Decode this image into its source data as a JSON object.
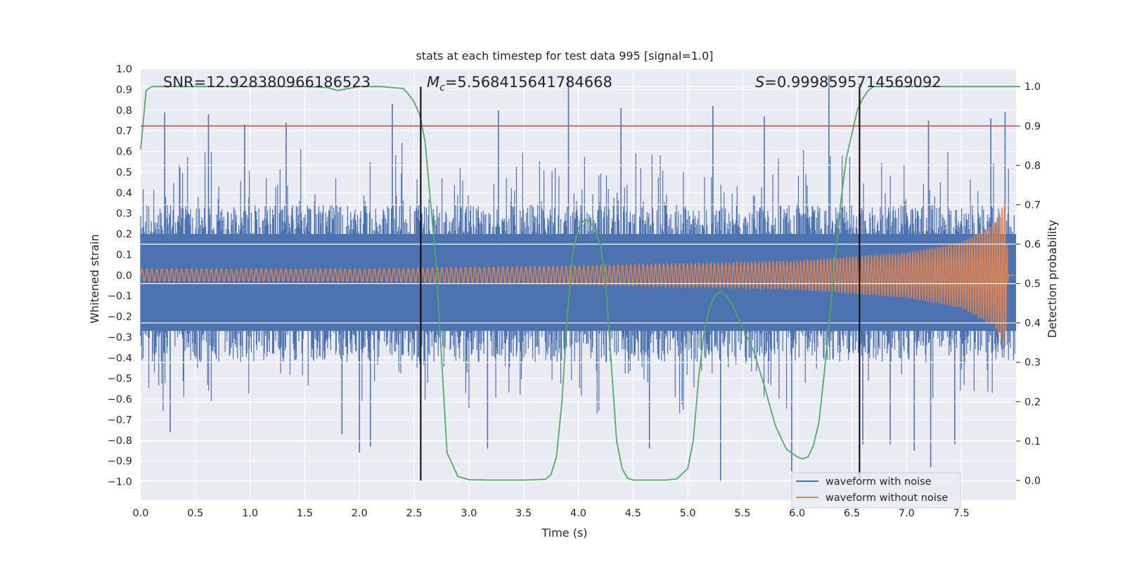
{
  "chart_data": {
    "type": "line",
    "title": "stats at each timestep for test data 995 [signal=1.0]",
    "xlabel": "Time (s)",
    "ylabel": "Whitened strain",
    "y2label": "Detection probability",
    "xlim": [
      0.0,
      8.0
    ],
    "ylim": [
      -1.09,
      1.0
    ],
    "y2lim": [
      -0.05,
      1.045
    ],
    "xticks": [
      "0.0",
      "0.5",
      "1.0",
      "1.5",
      "2.0",
      "2.5",
      "3.0",
      "3.5",
      "4.0",
      "4.5",
      "5.0",
      "5.5",
      "6.0",
      "6.5",
      "7.0",
      "7.5"
    ],
    "yticks": [
      "1.0",
      "0.9",
      "0.8",
      "0.7",
      "0.6",
      "0.5",
      "0.4",
      "0.3",
      "0.2",
      "0.1",
      "0.0",
      "−0.1",
      "−0.2",
      "−0.3",
      "−0.4",
      "−0.5",
      "−0.6",
      "−0.7",
      "−0.8",
      "−0.9",
      "−1.0"
    ],
    "y2ticks": [
      "1.0",
      "0.9",
      "0.8",
      "0.7",
      "0.6",
      "0.5",
      "0.4",
      "0.3",
      "0.2",
      "0.1",
      "0.0"
    ],
    "threshold": 0.9,
    "vlines": [
      2.56,
      6.57
    ],
    "annotations": {
      "snr": "SNR=12.928380966186523",
      "mc_symbol": "M",
      "mc_sub": "c",
      "mc_value": "=5.568415641784668",
      "s_symbol": "S",
      "s_value": "=0.9998595714569092"
    },
    "legend": {
      "placement": "lower-right",
      "entries": [
        "waveform with noise",
        "waveform without noise"
      ]
    },
    "series": [
      {
        "name": "waveform with noise",
        "color": "#4c72b0",
        "description": "whitened noisy strain, roughly ±0.35 band with spikes up to ±1.0",
        "envelope": {
          "x": [
            0,
            8
          ],
          "upper": [
            0.34,
            0.34
          ],
          "lower": [
            -0.42,
            -0.42
          ]
        },
        "peaks_up": [
          [
            0.22,
            0.79
          ],
          [
            0.62,
            0.78
          ],
          [
            0.95,
            0.73
          ],
          [
            1.33,
            0.74
          ],
          [
            2.3,
            0.83
          ],
          [
            3.27,
            0.8
          ],
          [
            3.91,
            0.96
          ],
          [
            4.39,
            0.81
          ],
          [
            5.23,
            0.82
          ],
          [
            5.7,
            0.77
          ],
          [
            6.29,
            0.97
          ],
          [
            6.57,
            0.93
          ],
          [
            7.2,
            0.75
          ],
          [
            7.77,
            0.76
          ],
          [
            7.9,
            0.79
          ]
        ],
        "peaks_down": [
          [
            0.27,
            -0.76
          ],
          [
            1.84,
            -0.77
          ],
          [
            2.0,
            -0.86
          ],
          [
            2.1,
            -0.83
          ],
          [
            3.17,
            -0.84
          ],
          [
            4.65,
            -0.84
          ],
          [
            5.3,
            -1.0
          ],
          [
            5.95,
            -0.95
          ],
          [
            6.6,
            -0.82
          ],
          [
            6.85,
            -0.82
          ],
          [
            7.07,
            -0.85
          ],
          [
            7.22,
            -0.93
          ],
          [
            7.44,
            -0.82
          ]
        ]
      },
      {
        "name": "waveform without noise",
        "color": "#dd8452",
        "description": "chirp: amplitude grows from ~0.03 to ~0.36 at merger (~7.9 s), then ringdown",
        "amplitude_points": [
          [
            0,
            0.03
          ],
          [
            2,
            0.03
          ],
          [
            4,
            0.045
          ],
          [
            6,
            0.07
          ],
          [
            7,
            0.11
          ],
          [
            7.5,
            0.16
          ],
          [
            7.8,
            0.25
          ],
          [
            7.9,
            0.36
          ],
          [
            7.93,
            0.0
          ]
        ],
        "x_end": 7.93
      },
      {
        "name": "detection probability",
        "color": "#55a868",
        "axis": "right",
        "x": [
          0.0,
          0.05,
          0.1,
          0.15,
          0.2,
          0.3,
          0.5,
          0.8,
          1.0,
          1.2,
          1.5,
          1.7,
          1.8,
          2.0,
          2.2,
          2.4,
          2.45,
          2.5,
          2.55,
          2.6,
          2.7,
          2.8,
          2.9,
          3.0,
          3.2,
          3.5,
          3.7,
          3.75,
          3.8,
          3.85,
          3.9,
          3.95,
          4.0,
          4.05,
          4.1,
          4.15,
          4.2,
          4.25,
          4.3,
          4.35,
          4.4,
          4.45,
          4.5,
          4.6,
          4.8,
          4.9,
          5.0,
          5.05,
          5.1,
          5.15,
          5.2,
          5.25,
          5.3,
          5.35,
          5.4,
          5.5,
          5.6,
          5.7,
          5.8,
          5.9,
          6.0,
          6.05,
          6.1,
          6.15,
          6.2,
          6.25,
          6.3,
          6.35,
          6.4,
          6.45,
          6.5,
          6.55,
          6.6,
          6.65,
          6.7,
          6.8,
          7.0,
          7.5,
          8.0
        ],
        "y": [
          0.84,
          0.99,
          1.0,
          1.0,
          1.0,
          1.0,
          1.0,
          1.0,
          1.0,
          1.0,
          1.0,
          0.998,
          0.99,
          1.0,
          1.0,
          0.995,
          0.98,
          0.96,
          0.93,
          0.86,
          0.55,
          0.07,
          0.01,
          0.002,
          0.001,
          0.001,
          0.003,
          0.015,
          0.06,
          0.2,
          0.42,
          0.58,
          0.64,
          0.66,
          0.66,
          0.64,
          0.6,
          0.5,
          0.3,
          0.1,
          0.03,
          0.006,
          0.001,
          0.001,
          0.001,
          0.004,
          0.03,
          0.1,
          0.26,
          0.38,
          0.44,
          0.47,
          0.48,
          0.47,
          0.45,
          0.39,
          0.33,
          0.24,
          0.14,
          0.08,
          0.06,
          0.055,
          0.06,
          0.09,
          0.15,
          0.28,
          0.42,
          0.57,
          0.71,
          0.82,
          0.88,
          0.94,
          0.97,
          0.99,
          1.0,
          1.0,
          1.0,
          1.0,
          1.0
        ]
      },
      {
        "name": "threshold",
        "color": "#c44e52",
        "axis": "right",
        "value": 0.9
      }
    ]
  }
}
